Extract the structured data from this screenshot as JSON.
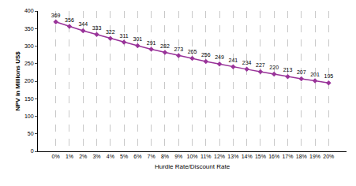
{
  "chart_data": {
    "type": "line",
    "categories": [
      "0%",
      "1%",
      "2%",
      "3%",
      "4%",
      "5%",
      "6%",
      "7%",
      "8%",
      "9%",
      "10%",
      "11%",
      "12%",
      "13%",
      "14%",
      "15%",
      "16%",
      "17%",
      "18%",
      "19%",
      "20%"
    ],
    "values": [
      369,
      356,
      344,
      333,
      322,
      311,
      301,
      291,
      282,
      273,
      265,
      256,
      249,
      241,
      234,
      227,
      220,
      213,
      207,
      201,
      195
    ],
    "color": "#993399",
    "marker": "diamond",
    "x_label": "Hurdle Rate/Discount Rate",
    "y_label": "NPV in Millions US$",
    "ylim": [
      0,
      400
    ],
    "yticks": [
      0,
      50,
      100,
      150,
      200,
      250,
      300,
      350,
      400
    ],
    "grid": true,
    "data_labels": true
  }
}
